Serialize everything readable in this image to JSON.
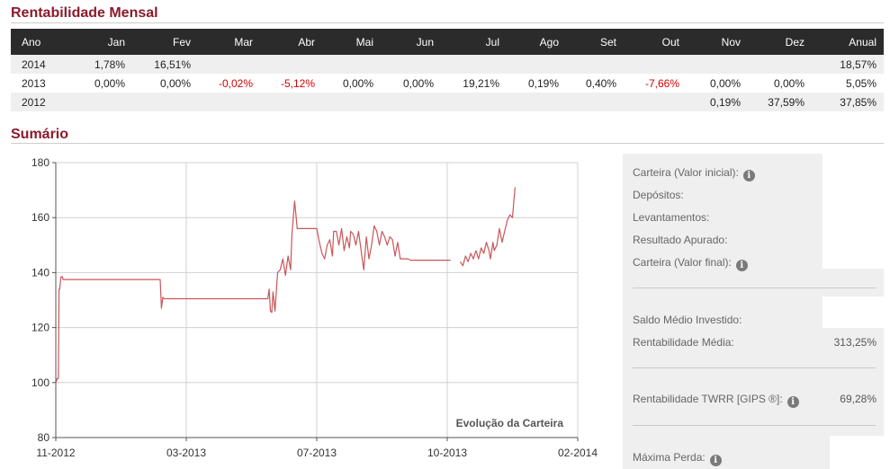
{
  "monthly": {
    "title": "Rentabilidade Mensal",
    "columns": [
      "Ano",
      "Jan",
      "Fev",
      "Mar",
      "Abr",
      "Mai",
      "Jun",
      "Jul",
      "Ago",
      "Set",
      "Out",
      "Nov",
      "Dez",
      "Anual"
    ],
    "rows": [
      [
        "2014",
        "1,78%",
        "16,51%",
        "",
        "",
        "",
        "",
        "",
        "",
        "",
        "",
        "",
        "",
        "18,57%"
      ],
      [
        "2013",
        "0,00%",
        "0,00%",
        "-0,02%",
        "-5,12%",
        "0,00%",
        "0,00%",
        "19,21%",
        "0,19%",
        "0,40%",
        "-7,66%",
        "0,00%",
        "0,00%",
        "5,05%"
      ],
      [
        "2012",
        "",
        "",
        "",
        "",
        "",
        "",
        "",
        "",
        "",
        "",
        "0,19%",
        "37,59%",
        "37,85%"
      ]
    ],
    "negative_color": "#d40000",
    "header_color": "#2b2b2b"
  },
  "summary": {
    "title": "Sumário",
    "items": {
      "carteira_inicial": {
        "label": "Carteira (Valor inicial):",
        "value": ""
      },
      "depositos": {
        "label": "Depósitos:",
        "value": ""
      },
      "levantamentos": {
        "label": "Levantamentos:",
        "value": ""
      },
      "resultado": {
        "label": "Resultado Apurado:",
        "value": ""
      },
      "carteira_final": {
        "label": "Carteira (Valor final):",
        "value": ""
      },
      "saldo_medio": {
        "label": "Saldo Médio Investido:",
        "value": ""
      },
      "rent_media": {
        "label": "Rentabilidade Média:",
        "value": "313,25%"
      },
      "rent_twrr": {
        "label": "Rentabilidade TWRR [GIPS ®]:",
        "value": "69,28%"
      },
      "maxima_perda": {
        "label": "Máxima Perda:",
        "value": ""
      }
    },
    "icon": "info-icon"
  },
  "chart_data": {
    "type": "line",
    "title": "Evolução da Carteira",
    "xlabel": "",
    "ylabel": "",
    "x_ticks": [
      "11-2012",
      "03-2013",
      "07-2013",
      "10-2013",
      "02-2014"
    ],
    "y_ticks": [
      80,
      100,
      120,
      140,
      160,
      180
    ],
    "ylim": [
      80,
      180
    ],
    "grid": true,
    "line_color": "#c9565a",
    "series": [
      {
        "points": [
          [
            0.0,
            100
          ],
          [
            0.01,
            100.5
          ],
          [
            0.02,
            101.5
          ],
          [
            0.04,
            101.5
          ],
          [
            0.05,
            134
          ],
          [
            0.06,
            134
          ],
          [
            0.07,
            136.5
          ],
          [
            0.08,
            138.5
          ],
          [
            0.1,
            138.5
          ],
          [
            0.11,
            137.5
          ],
          [
            1.6,
            137.5
          ],
          [
            1.62,
            127
          ],
          [
            1.64,
            131
          ],
          [
            1.66,
            130.5
          ],
          [
            3.25,
            130.5
          ],
          [
            3.27,
            134
          ],
          [
            3.29,
            126
          ],
          [
            3.31,
            125.5
          ],
          [
            3.33,
            133
          ],
          [
            3.36,
            126
          ],
          [
            3.4,
            140
          ],
          [
            3.44,
            141
          ],
          [
            3.48,
            145
          ],
          [
            3.52,
            139
          ],
          [
            3.56,
            146
          ],
          [
            3.6,
            141
          ],
          [
            3.62,
            154
          ],
          [
            3.66,
            166
          ],
          [
            3.7,
            156
          ],
          [
            4.0,
            156
          ],
          [
            4.04,
            151
          ],
          [
            4.08,
            147
          ],
          [
            4.12,
            145
          ],
          [
            4.16,
            150
          ],
          [
            4.2,
            152
          ],
          [
            4.24,
            146
          ],
          [
            4.26,
            155
          ],
          [
            4.3,
            155
          ],
          [
            4.34,
            150
          ],
          [
            4.38,
            156
          ],
          [
            4.42,
            148
          ],
          [
            4.46,
            153
          ],
          [
            4.5,
            149
          ],
          [
            4.52,
            155
          ],
          [
            4.56,
            154
          ],
          [
            4.6,
            150
          ],
          [
            4.64,
            155
          ],
          [
            4.68,
            148
          ],
          [
            4.72,
            141
          ],
          [
            4.76,
            153
          ],
          [
            4.8,
            145
          ],
          [
            4.84,
            150
          ],
          [
            4.88,
            157
          ],
          [
            4.92,
            155
          ],
          [
            4.96,
            150
          ],
          [
            5.0,
            155
          ],
          [
            5.04,
            153
          ],
          [
            5.08,
            150
          ],
          [
            5.12,
            153
          ],
          [
            5.16,
            152
          ],
          [
            5.2,
            146
          ],
          [
            5.24,
            151
          ],
          [
            5.28,
            145
          ],
          [
            5.32,
            145
          ],
          [
            5.4,
            145
          ],
          [
            5.44,
            144.5
          ],
          [
            6.05,
            144.5
          ]
        ]
      },
      {
        "points": [
          [
            6.2,
            144
          ],
          [
            6.24,
            142.5
          ],
          [
            6.28,
            146
          ],
          [
            6.32,
            144
          ],
          [
            6.36,
            147
          ],
          [
            6.4,
            145
          ],
          [
            6.44,
            148
          ],
          [
            6.48,
            145
          ],
          [
            6.52,
            149
          ],
          [
            6.56,
            147
          ],
          [
            6.6,
            151
          ],
          [
            6.64,
            148
          ],
          [
            6.66,
            145
          ],
          [
            6.7,
            151
          ],
          [
            6.72,
            148
          ],
          [
            6.76,
            150
          ],
          [
            6.8,
            156
          ],
          [
            6.84,
            151
          ],
          [
            6.88,
            155
          ],
          [
            6.92,
            159
          ],
          [
            6.96,
            161
          ],
          [
            7.0,
            160
          ],
          [
            7.02,
            166
          ],
          [
            7.04,
            171
          ]
        ]
      }
    ]
  }
}
